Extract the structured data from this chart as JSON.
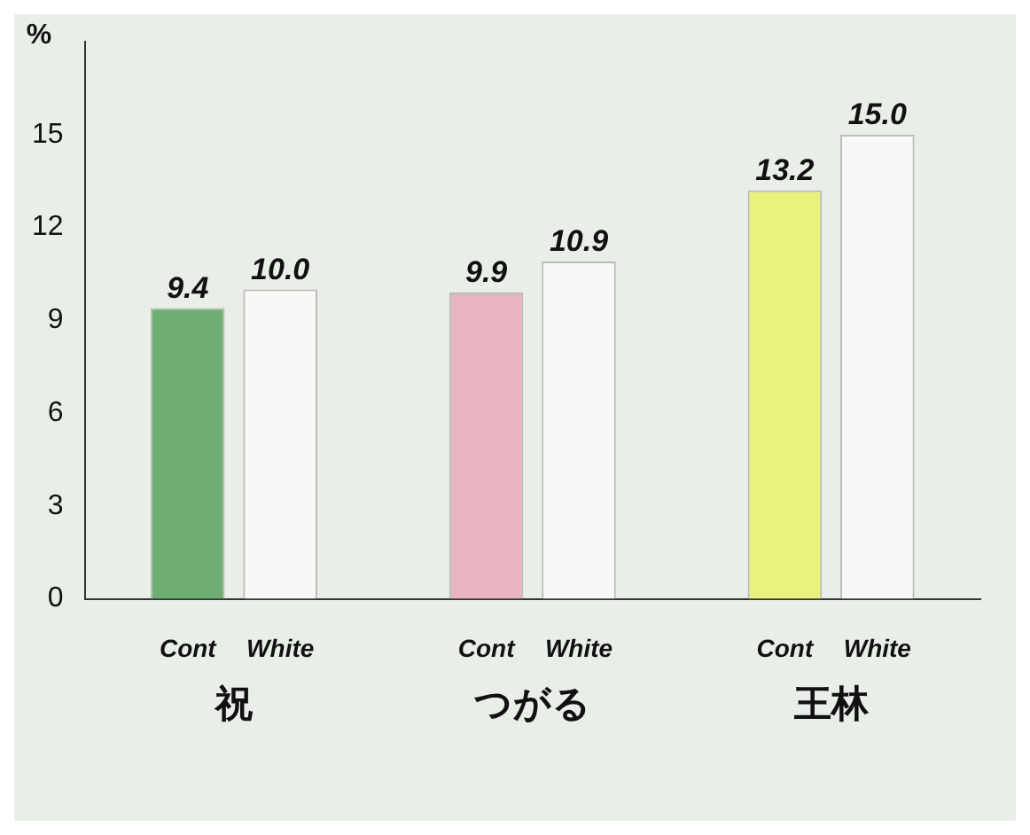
{
  "chart_data": {
    "type": "bar",
    "ylabel": "%",
    "categories": [
      "祝",
      "つがる",
      "王林"
    ],
    "series": [
      {
        "name": "Cont",
        "colors": [
          "#6fae73",
          "#e8b4c0",
          "#e9f27c"
        ],
        "values": [
          9.4,
          9.9,
          13.2
        ],
        "value_labels": [
          "9.4",
          "9.9",
          "13.2"
        ]
      },
      {
        "name": "White",
        "color": "#f8f8f6",
        "values": [
          10.0,
          10.9,
          15.0
        ],
        "value_labels": [
          "10.0",
          "10.9",
          "15.0"
        ]
      }
    ],
    "ylim": [
      0,
      18
    ],
    "yticks": [
      0,
      3,
      6,
      9,
      12,
      15
    ],
    "grid": false,
    "legend": false
  }
}
